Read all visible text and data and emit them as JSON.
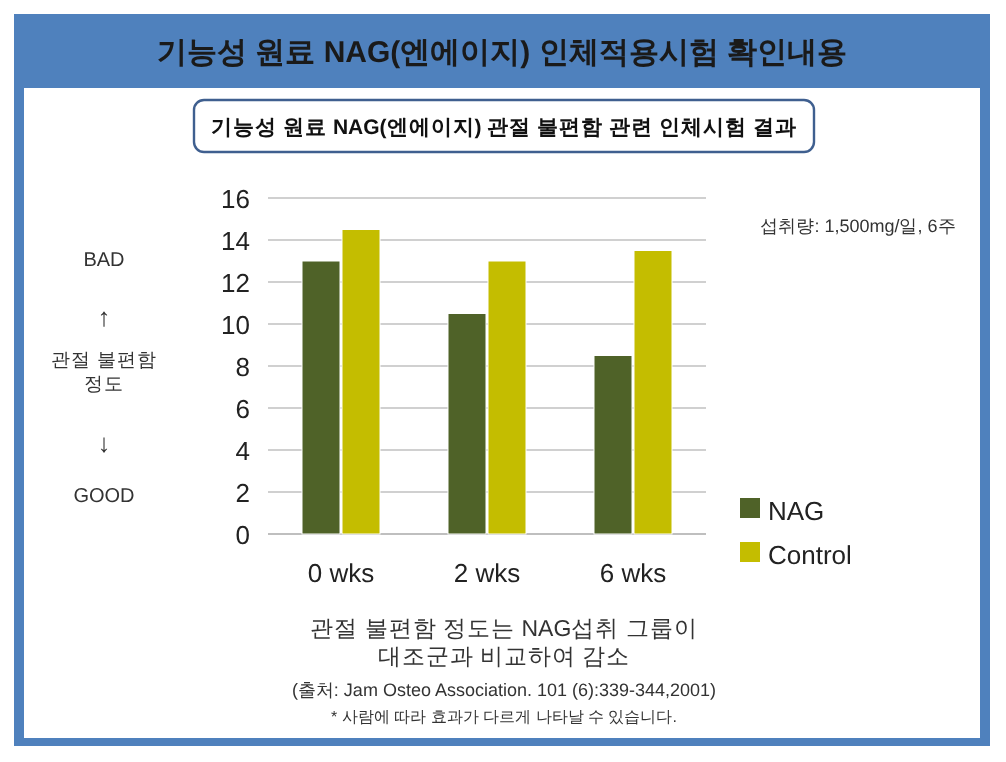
{
  "chart_data": {
    "type": "bar",
    "title": "기능성 원료 NAG(엔에이지) 인체적용시험 확인내용",
    "subtitle": "기능성 원료 NAG(엔에이지) 관절 불편함 관련 인체시험 결과",
    "ylabel": "관절 불편함 정도",
    "categories": [
      "0 wks",
      "2 wks",
      "6 wks"
    ],
    "series": [
      {
        "name": "NAG",
        "color": "#4f6228",
        "values": [
          13,
          10.5,
          8.5
        ]
      },
      {
        "name": "Control",
        "color": "#c4bd00",
        "values": [
          14.5,
          13,
          13.5
        ]
      }
    ],
    "ylim": [
      0,
      16
    ],
    "yticks": [
      0,
      2,
      4,
      6,
      8,
      10,
      12,
      14,
      16
    ],
    "grid": "y",
    "legend": "bottom right",
    "annotations": [
      "BAD",
      "↑",
      "↓",
      "GOOD",
      "섭취량: 1,500mg/일, 6주",
      "관절 불편함 정도는 NAG섭취 그룹이 대조군과 비교하여 감소",
      "(출처: Jam Osteo Association. 101 (6):339-344,2001)",
      "* 사람에 따라 효과가 다르게 나타날 수 있습니다."
    ]
  }
}
